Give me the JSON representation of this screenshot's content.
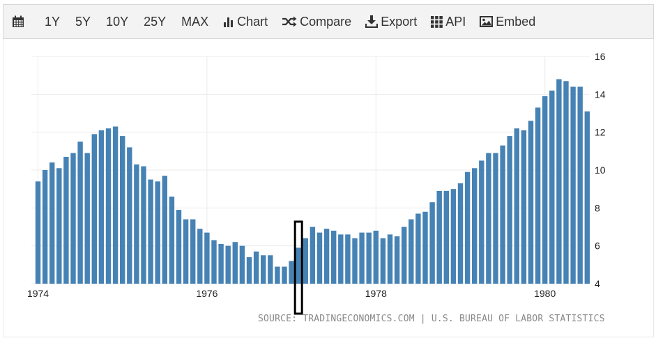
{
  "toolbar": {
    "calendar_icon": "calendar-icon",
    "ranges": [
      "1Y",
      "5Y",
      "10Y",
      "25Y",
      "MAX"
    ],
    "chart_label": "Chart",
    "compare_label": "Compare",
    "export_label": "Export",
    "api_label": "API",
    "embed_label": "Embed"
  },
  "source_text": "SOURCE: TRADINGECONOMICS.COM | U.S. BUREAU OF LABOR STATISTICS",
  "colors": {
    "bar": "#4682b4",
    "grid": "#ebebeb",
    "highlight": "#000000"
  },
  "chart_data": {
    "type": "bar",
    "title": "",
    "xlabel": "",
    "ylabel": "",
    "ylim": [
      4,
      16
    ],
    "yticks": [
      4,
      6,
      8,
      10,
      12,
      14,
      16
    ],
    "xtick_labels": [
      "1974",
      "1976",
      "1978",
      "1980"
    ],
    "x_start": "1974-01",
    "x_end": "1980-06",
    "grid": true,
    "y_axis_side": "right",
    "highlighted_month": "1977-02",
    "values": [
      9.4,
      10.0,
      10.4,
      10.1,
      10.7,
      10.9,
      11.5,
      10.9,
      11.9,
      12.1,
      12.2,
      12.3,
      11.8,
      11.2,
      10.3,
      10.2,
      9.5,
      9.4,
      9.7,
      8.6,
      7.9,
      7.4,
      7.4,
      6.9,
      6.7,
      6.3,
      6.1,
      6.0,
      6.2,
      6.0,
      5.4,
      5.7,
      5.5,
      5.5,
      4.9,
      4.9,
      5.2,
      5.9,
      6.4,
      7.0,
      6.7,
      6.9,
      6.8,
      6.6,
      6.6,
      6.4,
      6.7,
      6.7,
      6.8,
      6.4,
      6.6,
      6.5,
      7.0,
      7.4,
      7.7,
      7.8,
      8.3,
      8.9,
      8.9,
      9.0,
      9.3,
      9.9,
      10.1,
      10.5,
      10.9,
      10.9,
      11.3,
      11.8,
      12.2,
      12.1,
      12.6,
      13.3,
      13.9,
      14.2,
      14.8,
      14.7,
      14.4,
      14.4,
      13.1
    ]
  }
}
